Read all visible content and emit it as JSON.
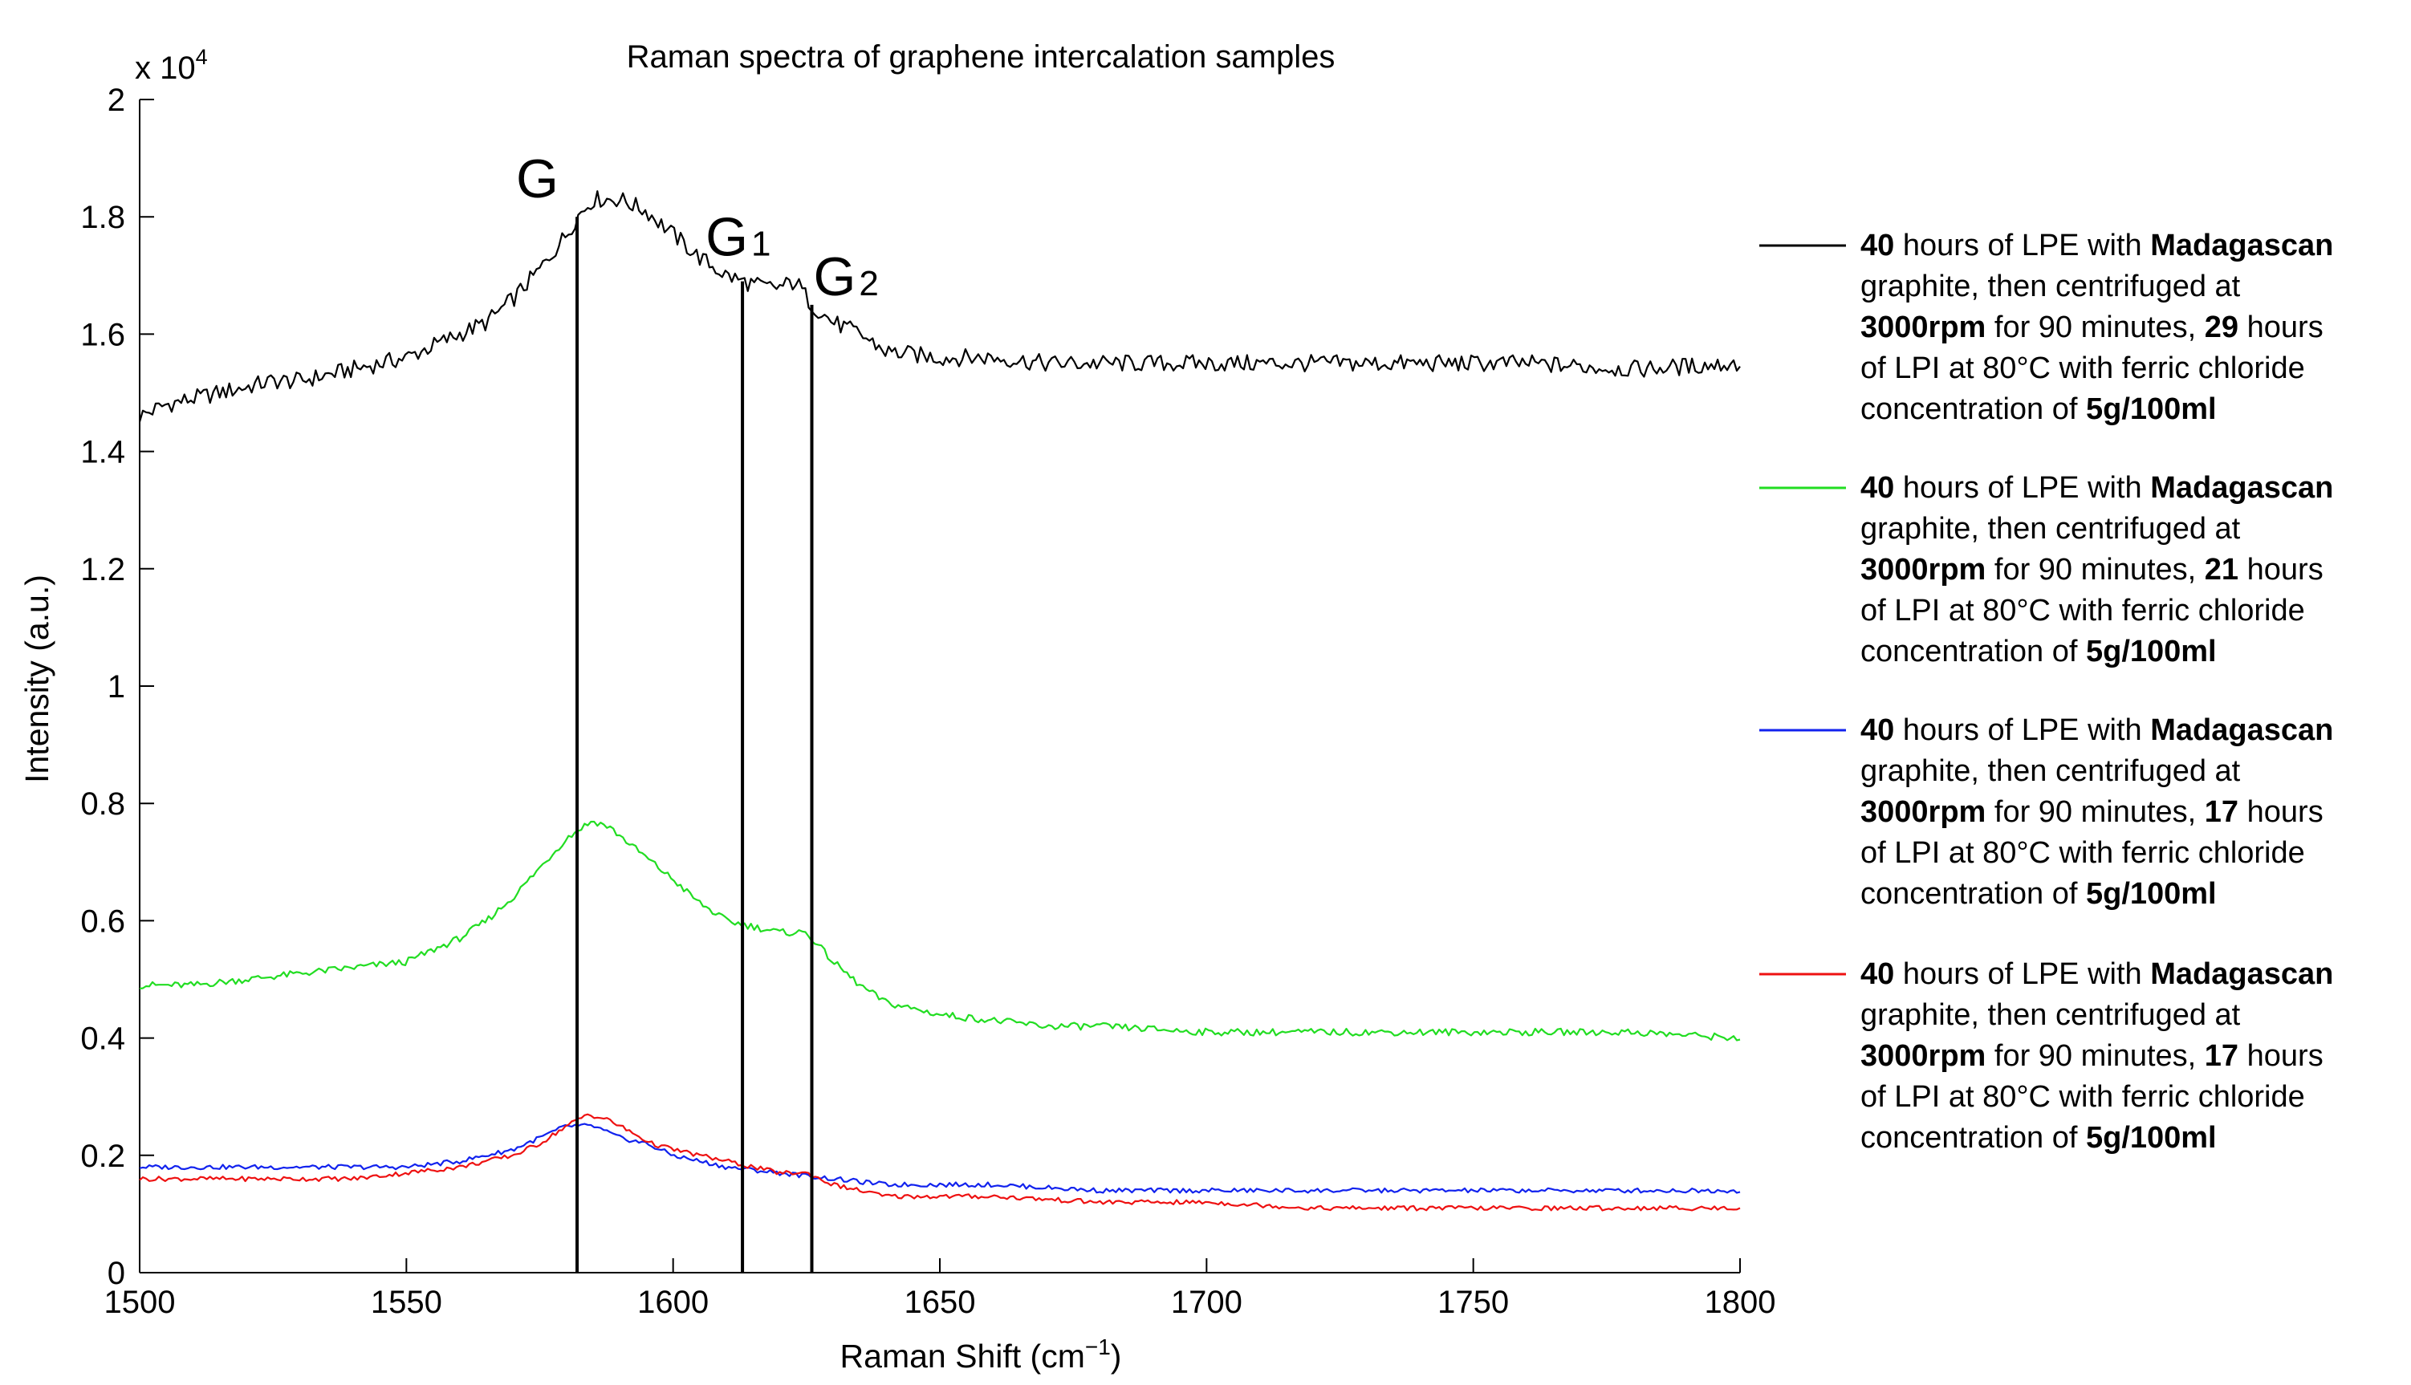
{
  "chart_data": {
    "type": "line",
    "title": "Raman spectra of graphene intercalation samples",
    "xlabel": "Raman Shift (cm",
    "xlabel_superscript": "−1",
    "xlabel_suffix": ")",
    "ylabel": "Intensity (a.u.)",
    "y_multiplier": "x 10",
    "y_multiplier_exponent": "4",
    "xlim": [
      1500,
      1800
    ],
    "ylim": [
      0,
      2
    ],
    "x_ticks": [
      1500,
      1550,
      1600,
      1650,
      1700,
      1750,
      1800
    ],
    "y_ticks": [
      0,
      0.2,
      0.4,
      0.6,
      0.8,
      1,
      1.2,
      1.4,
      1.6,
      1.8,
      2
    ],
    "y_tick_labels": [
      "0",
      "0.2",
      "0.4",
      "0.6",
      "0.8",
      "1",
      "1.2",
      "1.4",
      "1.6",
      "1.8",
      "2"
    ],
    "grid": false,
    "legend_position": "right",
    "peak_markers": [
      {
        "label": "G",
        "sub": "",
        "x": 1582
      },
      {
        "label": "G",
        "sub": "1",
        "x": 1613
      },
      {
        "label": "G",
        "sub": "2",
        "x": 1626
      }
    ],
    "series": [
      {
        "color": "#000000",
        "legend": [
          {
            "t": "40",
            "b": true
          },
          {
            "t": " hours of LPE with ",
            "b": false
          },
          {
            "t": "Madagascan",
            "b": true
          },
          {
            "t": "\n",
            "b": false
          },
          {
            "t": "graphite, then centrifuged at",
            "b": false
          },
          {
            "t": "\n",
            "b": false
          },
          {
            "t": "3000rpm",
            "b": true
          },
          {
            "t": " for 90 minutes, ",
            "b": false
          },
          {
            "t": "29",
            "b": true
          },
          {
            "t": " hours",
            "b": false
          },
          {
            "t": "\n",
            "b": false
          },
          {
            "t": "of LPI at 80°C with ferric chloride",
            "b": false
          },
          {
            "t": "\n",
            "b": false
          },
          {
            "t": "concentration of ",
            "b": false
          },
          {
            "t": "5g/100ml",
            "b": true
          }
        ],
        "x": [
          1500,
          1505,
          1510,
          1515,
          1520,
          1525,
          1530,
          1535,
          1540,
          1545,
          1550,
          1555,
          1560,
          1565,
          1570,
          1575,
          1580,
          1582,
          1585,
          1590,
          1595,
          1600,
          1605,
          1610,
          1613,
          1617,
          1620,
          1623,
          1626,
          1630,
          1635,
          1640,
          1650,
          1660,
          1670,
          1680,
          1690,
          1700,
          1720,
          1740,
          1760,
          1780,
          1800
        ],
        "values": [
          1.46,
          1.48,
          1.49,
          1.5,
          1.51,
          1.52,
          1.52,
          1.53,
          1.54,
          1.55,
          1.56,
          1.58,
          1.6,
          1.62,
          1.66,
          1.71,
          1.77,
          1.8,
          1.83,
          1.83,
          1.81,
          1.77,
          1.73,
          1.7,
          1.69,
          1.68,
          1.68,
          1.69,
          1.65,
          1.62,
          1.6,
          1.57,
          1.56,
          1.56,
          1.55,
          1.55,
          1.55,
          1.55,
          1.55,
          1.55,
          1.55,
          1.54,
          1.55
        ]
      },
      {
        "color": "#22dd22",
        "legend": [
          {
            "t": "40",
            "b": true
          },
          {
            "t": " hours of LPE with ",
            "b": false
          },
          {
            "t": "Madagascan",
            "b": true
          },
          {
            "t": "\n",
            "b": false
          },
          {
            "t": "graphite, then centrifuged at",
            "b": false
          },
          {
            "t": "\n",
            "b": false
          },
          {
            "t": "3000rpm",
            "b": true
          },
          {
            "t": " for 90 minutes, ",
            "b": false
          },
          {
            "t": "21",
            "b": true
          },
          {
            "t": " hours",
            "b": false
          },
          {
            "t": "\n",
            "b": false
          },
          {
            "t": "of LPI at 80°C with ferric chloride",
            "b": false
          },
          {
            "t": "\n",
            "b": false
          },
          {
            "t": "concentration of ",
            "b": false
          },
          {
            "t": "5g/100ml",
            "b": true
          }
        ],
        "x": [
          1500,
          1510,
          1520,
          1530,
          1540,
          1550,
          1555,
          1560,
          1565,
          1570,
          1575,
          1580,
          1583,
          1585,
          1588,
          1592,
          1596,
          1600,
          1605,
          1610,
          1615,
          1620,
          1625,
          1630,
          1635,
          1640,
          1650,
          1660,
          1670,
          1680,
          1700,
          1720,
          1740,
          1760,
          1780,
          1800
        ],
        "values": [
          0.49,
          0.49,
          0.5,
          0.51,
          0.52,
          0.53,
          0.55,
          0.57,
          0.6,
          0.64,
          0.69,
          0.74,
          0.76,
          0.77,
          0.76,
          0.73,
          0.7,
          0.67,
          0.63,
          0.6,
          0.59,
          0.58,
          0.58,
          0.53,
          0.49,
          0.46,
          0.44,
          0.43,
          0.42,
          0.42,
          0.41,
          0.41,
          0.41,
          0.41,
          0.41,
          0.4
        ]
      },
      {
        "color": "#1122ee",
        "legend": [
          {
            "t": "40",
            "b": true
          },
          {
            "t": " hours of LPE with ",
            "b": false
          },
          {
            "t": "Madagascan",
            "b": true
          },
          {
            "t": "\n",
            "b": false
          },
          {
            "t": "graphite, then centrifuged at",
            "b": false
          },
          {
            "t": "\n",
            "b": false
          },
          {
            "t": "3000rpm",
            "b": true
          },
          {
            "t": " for 90 minutes, ",
            "b": false
          },
          {
            "t": "17",
            "b": true
          },
          {
            "t": " hours",
            "b": false
          },
          {
            "t": "\n",
            "b": false
          },
          {
            "t": "of LPI at 80°C with ferric chloride",
            "b": false
          },
          {
            "t": "\n",
            "b": false
          },
          {
            "t": "concentration of ",
            "b": false
          },
          {
            "t": "5g/100ml",
            "b": true
          }
        ],
        "x": [
          1500,
          1520,
          1540,
          1550,
          1560,
          1565,
          1570,
          1575,
          1580,
          1585,
          1590,
          1595,
          1600,
          1610,
          1620,
          1630,
          1640,
          1660,
          1680,
          1700,
          1720,
          1740,
          1760,
          1780,
          1800
        ],
        "values": [
          0.18,
          0.18,
          0.18,
          0.18,
          0.19,
          0.2,
          0.21,
          0.23,
          0.25,
          0.25,
          0.23,
          0.22,
          0.2,
          0.18,
          0.17,
          0.16,
          0.15,
          0.15,
          0.14,
          0.14,
          0.14,
          0.14,
          0.14,
          0.14,
          0.14
        ]
      },
      {
        "color": "#ee1111",
        "legend": [
          {
            "t": "40",
            "b": true
          },
          {
            "t": " hours of LPE with ",
            "b": false
          },
          {
            "t": "Madagascan",
            "b": true
          },
          {
            "t": "\n",
            "b": false
          },
          {
            "t": "graphite, then centrifuged at",
            "b": false
          },
          {
            "t": "\n",
            "b": false
          },
          {
            "t": "3000rpm",
            "b": true
          },
          {
            "t": " for 90 minutes, ",
            "b": false
          },
          {
            "t": "17",
            "b": true
          },
          {
            "t": " hours",
            "b": false
          },
          {
            "t": "\n",
            "b": false
          },
          {
            "t": "of LPI at 80°C with ferric chloride",
            "b": false
          },
          {
            "t": "\n",
            "b": false
          },
          {
            "t": "concentration of ",
            "b": false
          },
          {
            "t": "5g/100ml",
            "b": true
          }
        ],
        "x": [
          1500,
          1520,
          1540,
          1550,
          1560,
          1565,
          1570,
          1575,
          1580,
          1584,
          1588,
          1592,
          1596,
          1600,
          1610,
          1620,
          1625,
          1630,
          1640,
          1650,
          1660,
          1680,
          1700,
          1720,
          1740,
          1760,
          1780,
          1800
        ],
        "values": [
          0.16,
          0.16,
          0.16,
          0.17,
          0.18,
          0.19,
          0.2,
          0.22,
          0.25,
          0.27,
          0.26,
          0.24,
          0.22,
          0.21,
          0.19,
          0.17,
          0.17,
          0.15,
          0.13,
          0.13,
          0.13,
          0.12,
          0.12,
          0.11,
          0.11,
          0.11,
          0.11,
          0.11
        ]
      }
    ]
  }
}
